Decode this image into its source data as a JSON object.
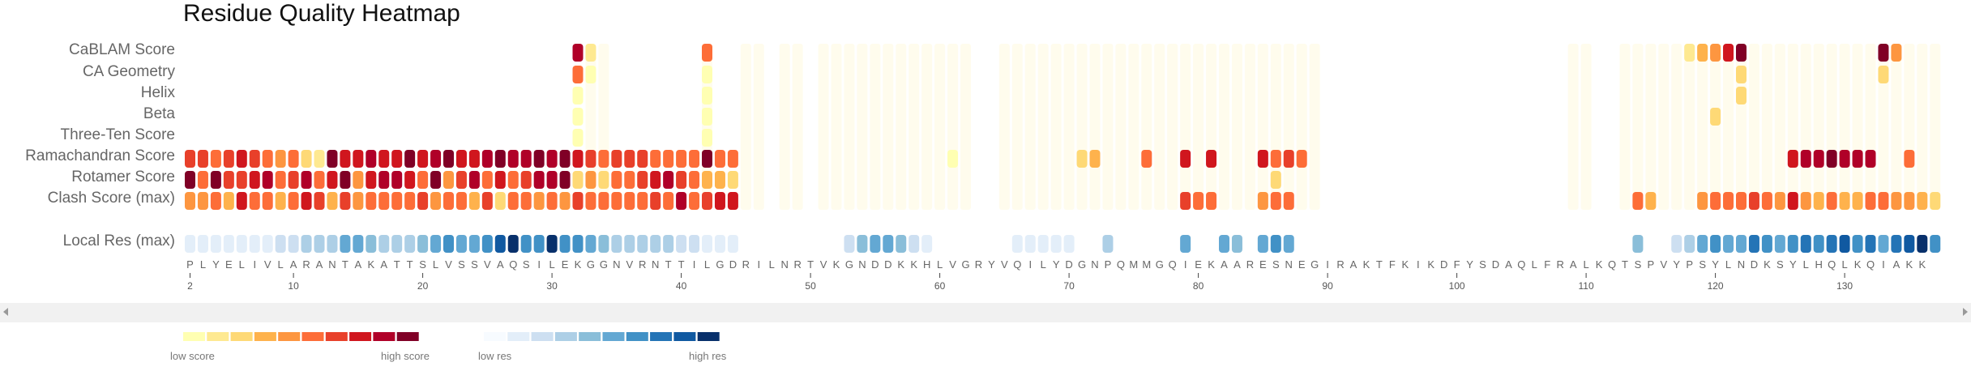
{
  "title": "Residue Quality Heatmap",
  "chart_data": {
    "type": "heatmap",
    "title": "Residue Quality Heatmap",
    "rows": [
      {
        "key": "cablam",
        "label": "CaBLAM Score",
        "scale": "score"
      },
      {
        "key": "ca_geom",
        "label": "CA Geometry",
        "scale": "score"
      },
      {
        "key": "helix",
        "label": "Helix",
        "scale": "score"
      },
      {
        "key": "beta",
        "label": "Beta",
        "scale": "score"
      },
      {
        "key": "three_ten",
        "label": "Three-Ten Score",
        "scale": "score"
      },
      {
        "key": "rama",
        "label": "Ramachandran Score",
        "scale": "score"
      },
      {
        "key": "rotamer",
        "label": "Rotamer Score",
        "scale": "score"
      },
      {
        "key": "clash",
        "label": "Clash Score (max)",
        "scale": "score"
      },
      {
        "key": "local_res",
        "label": "Local Res (max)",
        "scale": "res"
      }
    ],
    "sequence": "PLYELIVLARANTAKATTSLVSSVAQSILEKGGNVRNTTILGDRILNRTVKGNDDKKHLVGRYVQILYDGNPQMMGQIEKAARESNEGIRAKTFKIKDFYSDAQLFRALKQTSPVYPSYLNDKSYLHQLKQIAKK",
    "first_residue": 2,
    "x_ticks": [
      2,
      10,
      20,
      30,
      40,
      50,
      60,
      70,
      80,
      90,
      100,
      110,
      120,
      130
    ],
    "values": {
      "cablam": {
        "32": 0.85,
        "33": 0.08,
        "42": 0.55,
        "118": 0.12,
        "119": 0.3,
        "120": 0.45,
        "121": 0.75,
        "122": 1.0,
        "133": 0.95,
        "134": 0.4
      },
      "ca_geom": {
        "32": 0.5,
        "33": 0.05,
        "42": 0.05,
        "122": 0.2,
        "133": 0.2
      },
      "helix": {
        "32": 0.05,
        "42": 0.05,
        "122": 0.2
      },
      "beta": {
        "32": 0.05,
        "42": 0.05,
        "120": 0.2
      },
      "three_ten": {
        "32": 0.05,
        "42": 0.05
      },
      "rama": {
        "2": 0.65,
        "3": 0.7,
        "4": 0.6,
        "5": 0.7,
        "6": 0.75,
        "7": 0.65,
        "8": 0.5,
        "9": 0.4,
        "10": 0.5,
        "11": 0.2,
        "12": 0.1,
        "13": 0.95,
        "14": 0.8,
        "15": 0.75,
        "16": 0.9,
        "17": 0.8,
        "18": 0.8,
        "19": 0.95,
        "20": 0.8,
        "21": 0.85,
        "22": 0.95,
        "23": 0.8,
        "24": 0.8,
        "25": 0.9,
        "26": 0.95,
        "27": 0.9,
        "28": 0.85,
        "29": 0.95,
        "30": 0.9,
        "31": 0.95,
        "32": 0.8,
        "33": 0.65,
        "34": 0.6,
        "35": 0.65,
        "36": 0.7,
        "37": 0.7,
        "38": 0.6,
        "39": 0.5,
        "40": 0.55,
        "41": 0.6,
        "42": 0.95,
        "43": 0.6,
        "44": 0.55,
        "61": 0.04,
        "71": 0.2,
        "72": 0.3,
        "76": 0.5,
        "79": 0.75,
        "81": 0.8,
        "85": 0.8,
        "86": 0.55,
        "87": 0.65,
        "88": 0.5,
        "126": 0.8,
        "127": 0.85,
        "128": 0.9,
        "129": 0.95,
        "130": 0.9,
        "131": 0.85,
        "132": 0.9,
        "135": 0.6
      },
      "rotamer": {
        "2": 1.0,
        "3": 0.5,
        "4": 0.95,
        "5": 0.7,
        "6": 0.65,
        "7": 0.8,
        "8": 0.9,
        "9": 0.5,
        "10": 0.7,
        "11": 0.9,
        "12": 0.6,
        "13": 0.8,
        "14": 0.95,
        "15": 0.4,
        "16": 0.75,
        "17": 0.85,
        "18": 0.9,
        "19": 0.8,
        "20": 0.6,
        "21": 0.95,
        "22": 0.4,
        "23": 0.7,
        "24": 0.9,
        "25": 0.5,
        "26": 0.8,
        "27": 0.6,
        "28": 0.7,
        "29": 0.85,
        "30": 0.9,
        "31": 0.95,
        "32": 0.2,
        "33": 0.4,
        "34": 0.2,
        "35": 0.5,
        "36": 0.6,
        "37": 0.7,
        "38": 0.8,
        "39": 0.9,
        "40": 0.7,
        "41": 0.5,
        "42": 0.3,
        "43": 0.3,
        "44": 0.2,
        "86": 0.2
      },
      "clash": {
        "2": 0.4,
        "3": 0.45,
        "4": 0.6,
        "5": 0.3,
        "6": 0.8,
        "7": 0.5,
        "8": 0.5,
        "9": 0.35,
        "10": 0.6,
        "11": 0.8,
        "12": 0.7,
        "13": 0.3,
        "14": 0.7,
        "15": 0.4,
        "16": 0.6,
        "17": 0.55,
        "18": 0.5,
        "19": 0.5,
        "20": 0.7,
        "21": 0.4,
        "22": 0.6,
        "23": 0.6,
        "24": 0.3,
        "25": 0.7,
        "26": 0.2,
        "27": 0.6,
        "28": 0.5,
        "29": 0.4,
        "30": 0.5,
        "31": 0.4,
        "32": 0.7,
        "33": 0.5,
        "34": 0.5,
        "35": 0.6,
        "36": 0.6,
        "37": 0.5,
        "38": 0.7,
        "39": 0.6,
        "40": 0.9,
        "41": 0.6,
        "42": 0.7,
        "43": 0.75,
        "44": 0.8,
        "79": 0.7,
        "80": 0.5,
        "81": 0.5,
        "85": 0.4,
        "86": 0.6,
        "87": 0.5,
        "114": 0.5,
        "115": 0.3,
        "119": 0.4,
        "120": 0.6,
        "121": 0.5,
        "122": 0.5,
        "123": 0.7,
        "124": 0.6,
        "125": 0.4,
        "126": 0.8,
        "127": 0.4,
        "128": 0.3,
        "129": 0.5,
        "130": 0.3,
        "131": 0.3,
        "132": 0.5,
        "133": 0.5,
        "134": 0.45,
        "135": 0.4,
        "136": 0.3,
        "137": 0.2
      },
      "local_res": {
        "2": 0.15,
        "3": 0.15,
        "4": 0.15,
        "5": 0.12,
        "6": 0.12,
        "7": 0.12,
        "8": 0.15,
        "9": 0.2,
        "10": 0.25,
        "11": 0.3,
        "12": 0.35,
        "13": 0.35,
        "14": 0.5,
        "15": 0.55,
        "16": 0.45,
        "17": 0.35,
        "18": 0.35,
        "19": 0.35,
        "20": 0.45,
        "21": 0.5,
        "22": 0.65,
        "23": 0.6,
        "24": 0.55,
        "25": 0.7,
        "26": 0.85,
        "27": 1.0,
        "28": 0.7,
        "29": 0.7,
        "30": 0.95,
        "31": 0.7,
        "32": 0.7,
        "33": 0.6,
        "34": 0.45,
        "35": 0.35,
        "36": 0.3,
        "37": 0.3,
        "38": 0.35,
        "39": 0.3,
        "40": 0.25,
        "41": 0.2,
        "42": 0.15,
        "43": 0.15,
        "44": 0.1,
        "53": 0.2,
        "54": 0.45,
        "55": 0.55,
        "56": 0.55,
        "57": 0.4,
        "58": 0.2,
        "59": 0.1,
        "66": 0.1,
        "67": 0.1,
        "68": 0.1,
        "69": 0.15,
        "70": 0.1,
        "73": 0.35,
        "79": 0.55,
        "82": 0.55,
        "83": 0.45,
        "85": 0.55,
        "86": 0.65,
        "87": 0.5,
        "114": 0.45,
        "117": 0.25,
        "118": 0.35,
        "119": 0.6,
        "120": 0.65,
        "121": 0.55,
        "122": 0.6,
        "123": 0.75,
        "124": 0.65,
        "125": 0.6,
        "126": 0.7,
        "127": 0.75,
        "128": 0.65,
        "129": 0.8,
        "130": 0.85,
        "131": 0.7,
        "132": 0.8,
        "133": 0.55,
        "134": 0.75,
        "135": 0.9,
        "136": 0.95,
        "137": 0.7
      }
    },
    "faint_columns": [
      33,
      34,
      42,
      45,
      46,
      48,
      49,
      51,
      52,
      53,
      54,
      55,
      56,
      57,
      58,
      59,
      60,
      61,
      62,
      65,
      66,
      67,
      68,
      69,
      70,
      71,
      72,
      73,
      74,
      75,
      76,
      77,
      78,
      79,
      80,
      81,
      82,
      83,
      84,
      85,
      86,
      87,
      88,
      89,
      109,
      110,
      113,
      114,
      115,
      116,
      117,
      118,
      119,
      120,
      121,
      122,
      123,
      124,
      125,
      126,
      127,
      128,
      129,
      130,
      131,
      132,
      133,
      134,
      135,
      136,
      137
    ],
    "score_colors": [
      "#ffffb2",
      "#fee991",
      "#fed976",
      "#feb24c",
      "#fd9640",
      "#fd6d38",
      "#e8402a",
      "#d0161e",
      "#b00028",
      "#800026"
    ],
    "res_colors": [
      "#f7fbff",
      "#e3eef9",
      "#cddff1",
      "#adcfe6",
      "#8abed9",
      "#63a8d3",
      "#4191c6",
      "#2474b6",
      "#1059a1",
      "#08306b"
    ],
    "legend": {
      "score_low": "low score",
      "score_high": "high score",
      "res_low": "low res",
      "res_high": "high res"
    }
  }
}
